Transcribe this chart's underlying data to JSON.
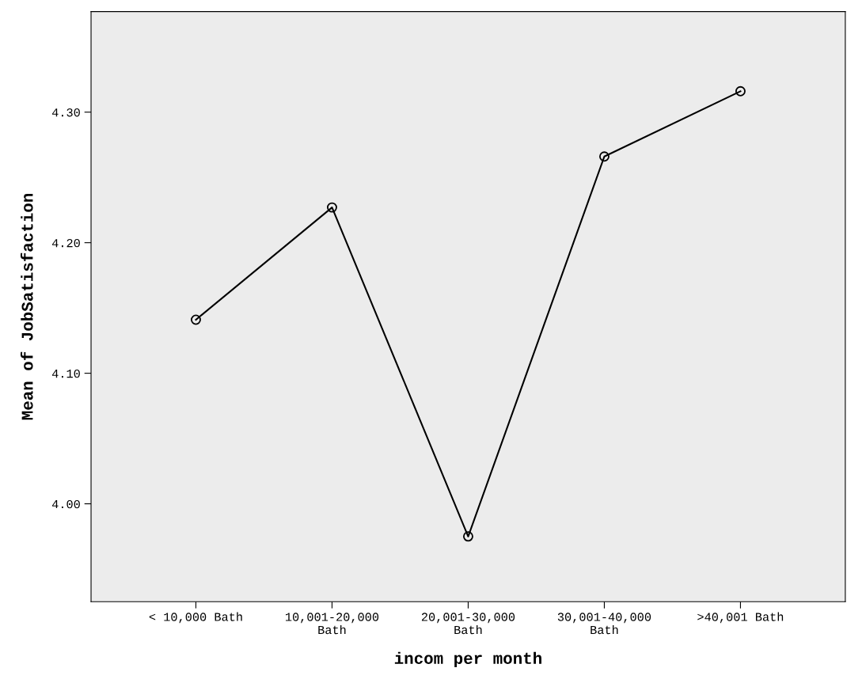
{
  "chart_data": {
    "type": "line",
    "xlabel": "incom per month",
    "ylabel": "Mean of JobSatisfaction",
    "categories": [
      "< 10,000 Bath",
      "10,001-20,000\nBath",
      "20,001-30,000\nBath",
      "30,001-40,000\nBath",
      ">40,001 Bath"
    ],
    "series": [
      {
        "color": "#000000",
        "values": [
          4.141,
          4.227,
          3.975,
          4.266,
          4.316
        ]
      }
    ],
    "ylim": [
      3.925,
      4.377
    ],
    "yticks": [
      {
        "value": 4.0,
        "label": "4.00"
      },
      {
        "value": 4.1,
        "label": "4.10"
      },
      {
        "value": 4.2,
        "label": "4.20"
      },
      {
        "value": 4.3,
        "label": "4.30"
      }
    ],
    "grid": false,
    "legend": false,
    "marker": "circle",
    "line_style": "solid"
  }
}
